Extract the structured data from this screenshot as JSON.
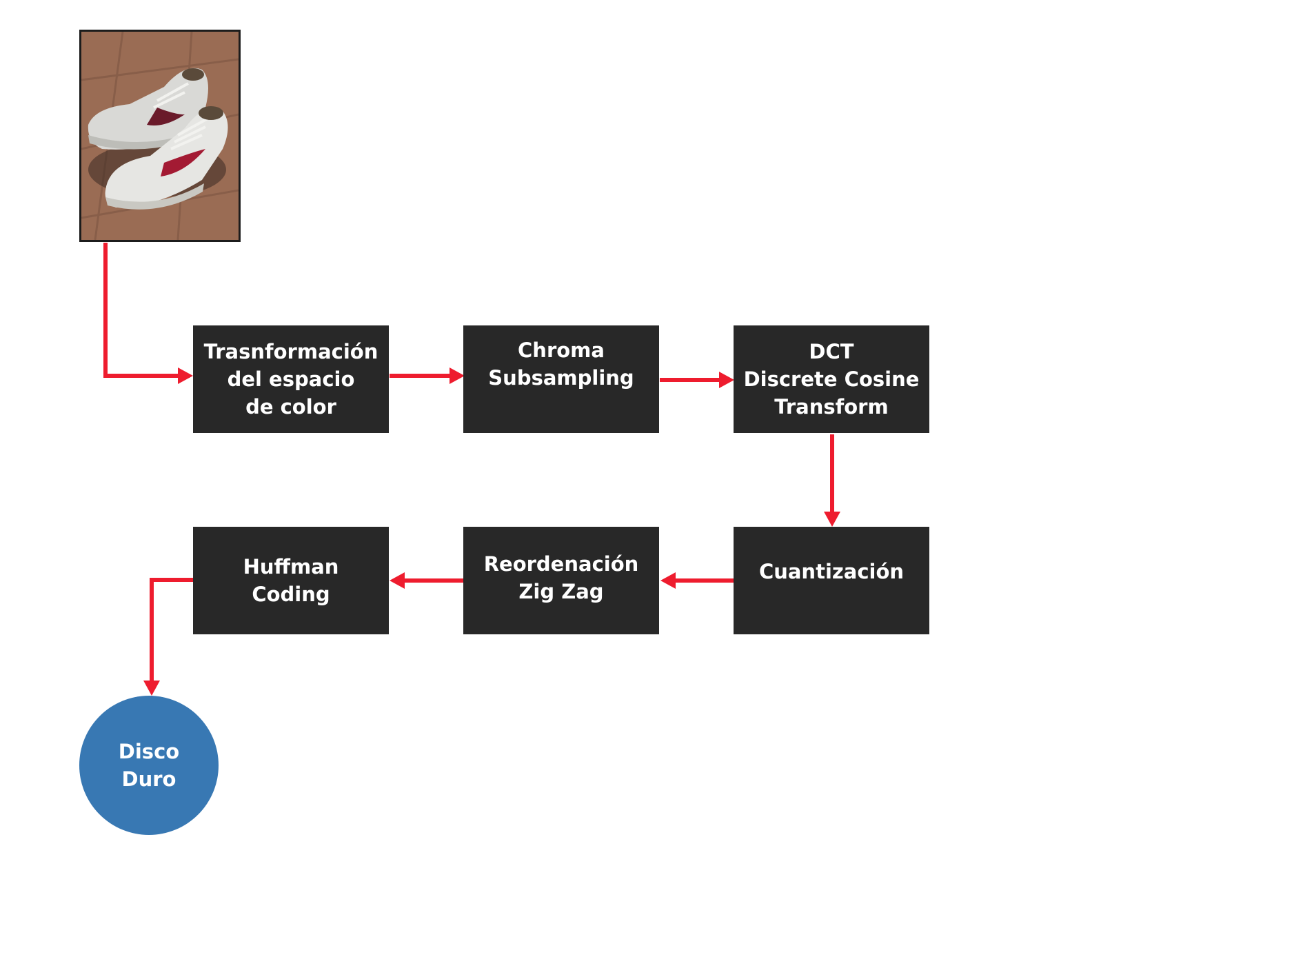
{
  "colors": {
    "background": "#ffffff",
    "box_fill": "#282828",
    "box_text": "#ffffff",
    "arrow": "#ee1c2e",
    "storage_fill": "#3878b3"
  },
  "input_image": {
    "icon": "sneakers-photo"
  },
  "steps": {
    "color_space": "Trasnformación\ndel espacio\nde color",
    "chroma": "Chroma\nSubsampling",
    "dct": "DCT\nDiscrete Cosine\nTransform",
    "quantization": "Cuantización",
    "zigzag": "Reordenación\nZig Zag",
    "huffman": "Huffman\nCoding"
  },
  "storage": {
    "label": "Disco\nDuro"
  }
}
